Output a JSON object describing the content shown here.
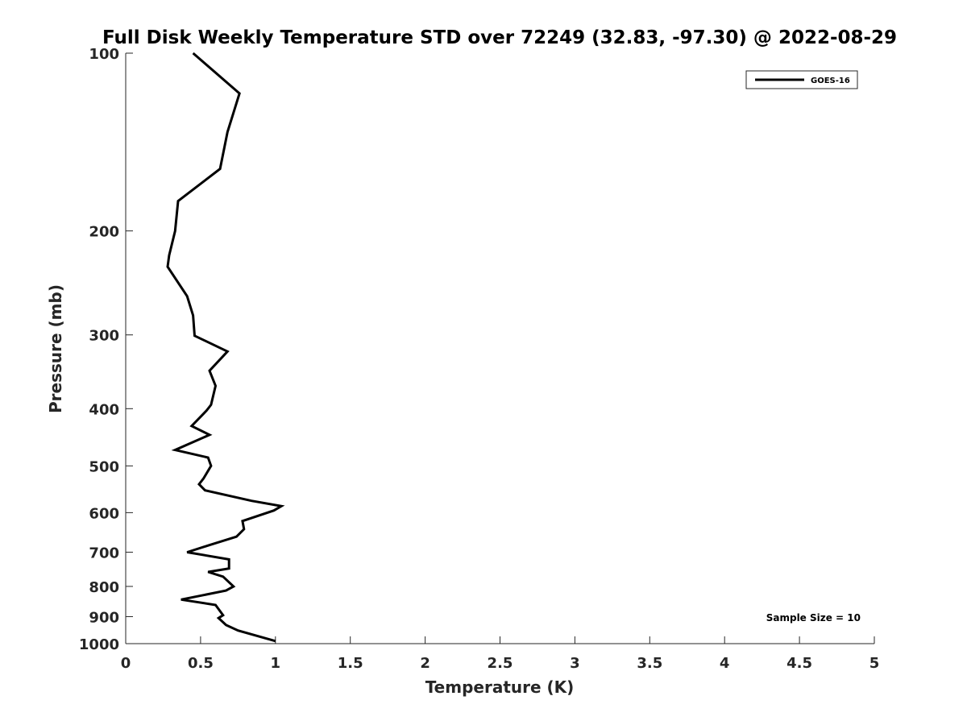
{
  "chart_data": {
    "type": "line",
    "title": "Full Disk Weekly Temperature STD over 72249 (32.83, -97.30) @ 2022-08-29",
    "xlabel": "Temperature (K)",
    "ylabel": "Pressure (mb)",
    "xlim": [
      0,
      5
    ],
    "ylim": [
      1000,
      100
    ],
    "y_scale": "log",
    "y_reversed": true,
    "x_ticks": [
      "0",
      "0.5",
      "1",
      "1.5",
      "2",
      "2.5",
      "3",
      "3.5",
      "4",
      "4.5",
      "5"
    ],
    "y_ticks": [
      "100",
      "200",
      "300",
      "400",
      "500",
      "600",
      "700",
      "800",
      "900",
      "1000"
    ],
    "grid": false,
    "legend": {
      "position": "top-right",
      "entries": [
        "GOES-16"
      ]
    },
    "annotation": "Sample Size = 10",
    "line_color": "#000000",
    "series": [
      {
        "name": "GOES-16",
        "points": [
          [
            0.45,
            100
          ],
          [
            0.76,
            117
          ],
          [
            0.68,
            136
          ],
          [
            0.63,
            157
          ],
          [
            0.35,
            178
          ],
          [
            0.33,
            200
          ],
          [
            0.29,
            220
          ],
          [
            0.28,
            230
          ],
          [
            0.41,
            258
          ],
          [
            0.45,
            278
          ],
          [
            0.46,
            301
          ],
          [
            0.68,
            320
          ],
          [
            0.56,
            345
          ],
          [
            0.6,
            366
          ],
          [
            0.57,
            394
          ],
          [
            0.54,
            403
          ],
          [
            0.44,
            428
          ],
          [
            0.56,
            443
          ],
          [
            0.33,
            470
          ],
          [
            0.55,
            484
          ],
          [
            0.57,
            500
          ],
          [
            0.52,
            525
          ],
          [
            0.49,
            537
          ],
          [
            0.53,
            550
          ],
          [
            0.84,
            573
          ],
          [
            1.04,
            585
          ],
          [
            0.99,
            595
          ],
          [
            0.78,
            620
          ],
          [
            0.79,
            640
          ],
          [
            0.74,
            659
          ],
          [
            0.55,
            682
          ],
          [
            0.41,
            700
          ],
          [
            0.69,
            720
          ],
          [
            0.69,
            746
          ],
          [
            0.55,
            756
          ],
          [
            0.65,
            770
          ],
          [
            0.72,
            800
          ],
          [
            0.67,
            813
          ],
          [
            0.37,
            842
          ],
          [
            0.6,
            860
          ],
          [
            0.65,
            895
          ],
          [
            0.62,
            905
          ],
          [
            0.67,
            930
          ],
          [
            0.75,
            950
          ],
          [
            1.0,
            990
          ]
        ]
      }
    ]
  }
}
